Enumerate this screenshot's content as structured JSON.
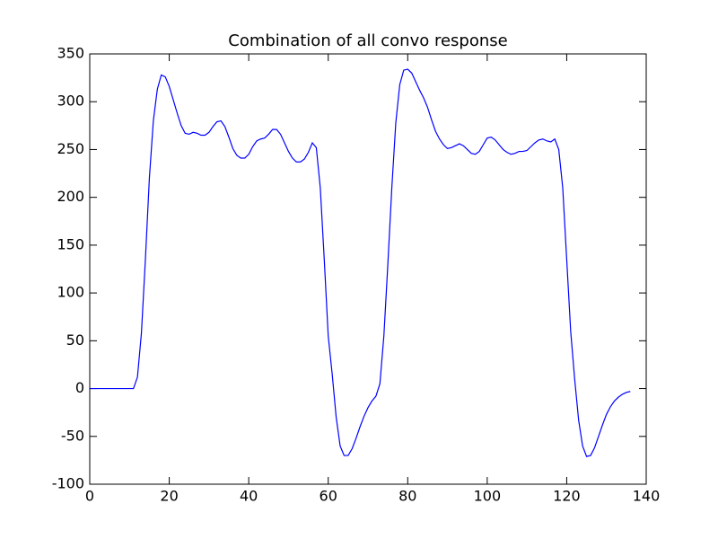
{
  "chart_data": {
    "type": "line",
    "title": "Combination of all convo response",
    "x": [
      0,
      1,
      2,
      3,
      4,
      5,
      6,
      7,
      8,
      9,
      10,
      11,
      12,
      13,
      14,
      15,
      16,
      17,
      18,
      19,
      20,
      21,
      22,
      23,
      24,
      25,
      26,
      27,
      28,
      29,
      30,
      31,
      32,
      33,
      34,
      35,
      36,
      37,
      38,
      39,
      40,
      41,
      42,
      43,
      44,
      45,
      46,
      47,
      48,
      49,
      50,
      51,
      52,
      53,
      54,
      55,
      56,
      57,
      58,
      59,
      60,
      61,
      62,
      63,
      64,
      65,
      66,
      67,
      68,
      69,
      70,
      71,
      72,
      73,
      74,
      75,
      76,
      77,
      78,
      79,
      80,
      81,
      82,
      83,
      84,
      85,
      86,
      87,
      88,
      89,
      90,
      91,
      92,
      93,
      94,
      95,
      96,
      97,
      98,
      99,
      100,
      101,
      102,
      103,
      104,
      105,
      106,
      107,
      108,
      109,
      110,
      111,
      112,
      113,
      114,
      115,
      116,
      117,
      118,
      119,
      120,
      121,
      122,
      123,
      124,
      125,
      126,
      127,
      128,
      129,
      130,
      131,
      132,
      133,
      134,
      135,
      136
    ],
    "series": [
      {
        "color": "#0000ff",
        "values": [
          0,
          0,
          0,
          0,
          0,
          0,
          0,
          0,
          0,
          0,
          0,
          0,
          12,
          58,
          135,
          220,
          280,
          313,
          328,
          326,
          316,
          302,
          288,
          275,
          267,
          266,
          268,
          267,
          265,
          265,
          268,
          274,
          279,
          280,
          274,
          263,
          251,
          244,
          241,
          241,
          245,
          253,
          259,
          261,
          262,
          266,
          271,
          271,
          266,
          257,
          248,
          241,
          237,
          237,
          240,
          247,
          257,
          252,
          210,
          135,
          55,
          15,
          -30,
          -60,
          -70,
          -70,
          -63,
          -52,
          -40,
          -29,
          -20,
          -13,
          -8,
          5,
          55,
          130,
          210,
          278,
          318,
          333,
          334,
          330,
          321,
          312,
          304,
          294,
          281,
          269,
          261,
          255,
          251,
          252,
          254,
          256,
          254,
          250,
          246,
          245,
          248,
          255,
          262,
          263,
          260,
          255,
          250,
          247,
          245,
          246,
          248,
          248,
          249,
          253,
          257,
          260,
          261,
          259,
          258,
          261,
          250,
          210,
          135,
          60,
          10,
          -33,
          -60,
          -71,
          -70,
          -62,
          -50,
          -38,
          -27,
          -19,
          -13,
          -9,
          -6,
          -4,
          -3
        ]
      }
    ],
    "xlim": [
      0,
      140
    ],
    "xticks": [
      0,
      20,
      40,
      60,
      80,
      100,
      120,
      140
    ],
    "ylim": [
      -100,
      350
    ],
    "yticks": [
      -100,
      -50,
      0,
      50,
      100,
      150,
      200,
      250,
      300,
      350
    ]
  }
}
